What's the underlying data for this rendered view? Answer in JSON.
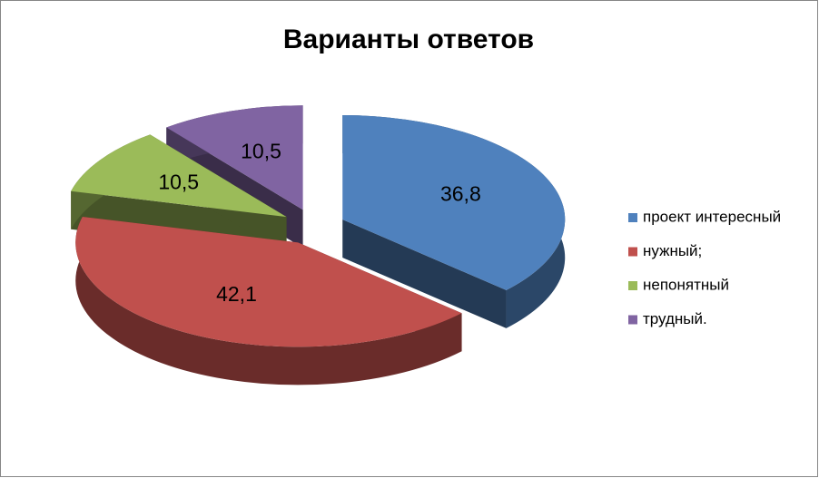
{
  "chart_data": {
    "type": "pie",
    "title": "Варианты ответов",
    "categories": [
      "проект интересный",
      "нужный;",
      "непонятный",
      "трудный."
    ],
    "values": [
      36.8,
      42.1,
      10.5,
      10.5
    ],
    "value_labels": [
      "36,8",
      "42,1",
      "10,5",
      "10,5"
    ],
    "colors": [
      "#4f81bd",
      "#c0504d",
      "#9bbb59",
      "#8064a2"
    ],
    "exploded": true,
    "three_d": true,
    "legend": "right"
  }
}
